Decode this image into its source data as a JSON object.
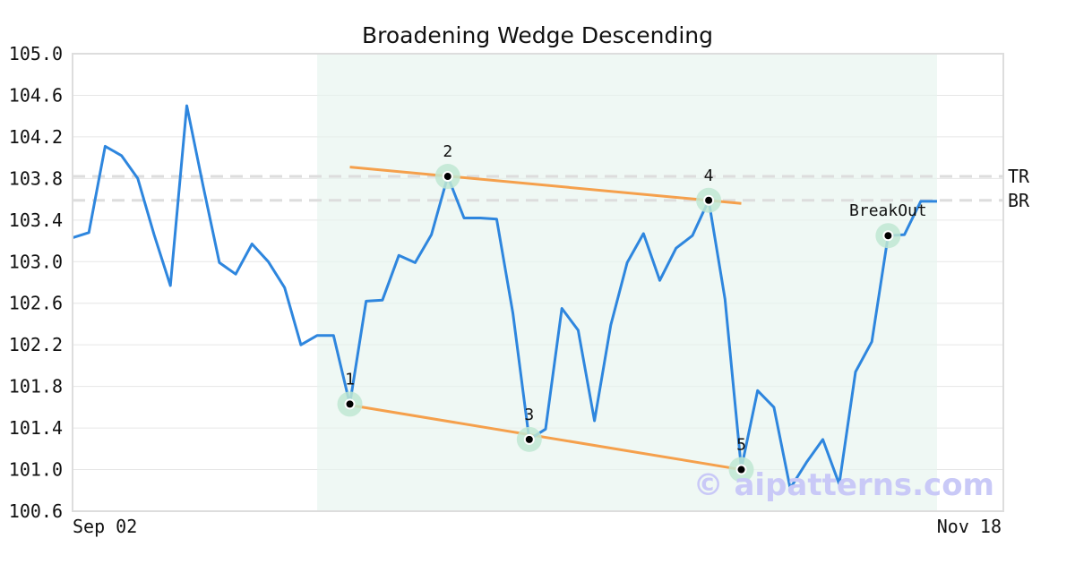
{
  "chart_data": {
    "type": "line",
    "title": "Broadening Wedge Descending",
    "x_labels": [
      "Sep 02",
      "Nov 18"
    ],
    "ylim": [
      100.6,
      105.0
    ],
    "y_ticks": [
      "105.0",
      "104.6",
      "104.2",
      "103.8",
      "103.4",
      "103.0",
      "102.6",
      "102.2",
      "101.8",
      "101.4",
      "101.0",
      "100.6"
    ],
    "grid": true,
    "series": [
      {
        "color": "#2e86de",
        "values": [
          103.23,
          103.28,
          104.11,
          104.02,
          103.8,
          103.26,
          102.77,
          104.5,
          103.73,
          102.99,
          102.88,
          103.17,
          103.0,
          102.75,
          102.2,
          102.29,
          102.29,
          101.63,
          102.62,
          102.63,
          103.06,
          102.99,
          103.26,
          103.82,
          103.42,
          103.42,
          103.41,
          102.5,
          101.29,
          101.39,
          102.55,
          102.34,
          101.47,
          102.39,
          102.99,
          103.27,
          102.82,
          103.13,
          103.25,
          103.59,
          102.64,
          101.01,
          101.76,
          101.6,
          100.82,
          101.07,
          101.29,
          100.86,
          101.94,
          102.23,
          103.25,
          103.26,
          103.58,
          103.58
        ]
      }
    ],
    "pattern_region": {
      "start_index": 15,
      "end_index": 53,
      "color": "#e6f4ee"
    },
    "trend_lines": [
      {
        "color": "#f5a04c",
        "from": {
          "x": 17,
          "y": 103.91
        },
        "to": {
          "x": 41,
          "y": 103.56
        }
      },
      {
        "color": "#f5a04c",
        "from": {
          "x": 17,
          "y": 101.62
        },
        "to": {
          "x": 41,
          "y": 101.0
        }
      }
    ],
    "points": [
      {
        "label": "1",
        "x": 17,
        "y": 101.63,
        "label_pos": "above"
      },
      {
        "label": "2",
        "x": 23,
        "y": 103.82,
        "label_pos": "above"
      },
      {
        "label": "3",
        "x": 28,
        "y": 101.29,
        "label_pos": "above"
      },
      {
        "label": "4",
        "x": 39,
        "y": 103.59,
        "label_pos": "above"
      },
      {
        "label": "5",
        "x": 41,
        "y": 101.0,
        "label_pos": "above"
      },
      {
        "label": "BreakOut",
        "x": 50,
        "y": 103.25,
        "label_pos": "above"
      }
    ],
    "levels": [
      {
        "label": "TR",
        "y": 103.82
      },
      {
        "label": "BR",
        "y": 103.59
      }
    ],
    "watermark": "© aipatterns.com",
    "colors": {
      "line": "#2e86de",
      "trend": "#f5a04c",
      "marker_halo": "#bfe8d2",
      "marker_dot": "#000000",
      "level_line": "#dddddd",
      "region": "#e6f4ee"
    }
  }
}
